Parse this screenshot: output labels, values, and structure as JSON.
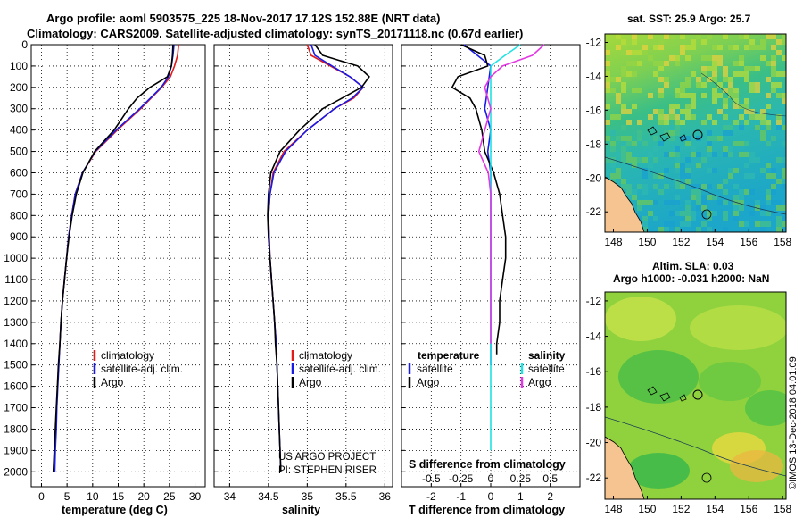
{
  "header": {
    "title_line1": "Argo profile: aoml 5903575_225 18-Nov-2017 17.12S 152.88E (NRT data)",
    "title_line2": "Climatology: CARS2009. Satellite-adjusted climatology: synTS_20171118.nc (0.67d earlier)"
  },
  "colors": {
    "climatology": "#e21a1a",
    "satellite": "#1a1ae6",
    "argo": "#000000",
    "sal_satellite": "#1fe3e3",
    "sal_argo": "#e23ae2",
    "land": "#f5c490"
  },
  "chart_data": [
    {
      "type": "line",
      "name": "temperature",
      "xlabel": "temperature (deg C)",
      "ylabel": "",
      "xlim": [
        -2,
        32
      ],
      "ylim": [
        2070,
        0
      ],
      "xticks": [
        0,
        5,
        10,
        15,
        20,
        25,
        30
      ],
      "yticks": [
        0,
        100,
        200,
        300,
        400,
        500,
        600,
        700,
        800,
        900,
        1000,
        1100,
        1200,
        1300,
        1400,
        1500,
        1600,
        1700,
        1800,
        1900,
        2000
      ],
      "legend": [
        "climatology",
        "satellite-adj. clim.",
        "Argo"
      ],
      "series": [
        {
          "name": "climatology",
          "color": "#e21a1a",
          "depth": [
            0,
            50,
            100,
            150,
            200,
            300,
            400,
            500,
            600,
            700,
            800,
            900,
            1000,
            1100,
            1200,
            1300,
            1400,
            1450
          ],
          "values": [
            26.8,
            26.6,
            26.0,
            25.2,
            23.5,
            19.4,
            14.8,
            10.6,
            8.0,
            6.6,
            5.9,
            5.3,
            4.9,
            4.5,
            4.1,
            3.8,
            3.6,
            3.5
          ]
        },
        {
          "name": "satellite-adj. clim.",
          "color": "#1a1ae6",
          "depth": [
            0,
            50,
            100,
            150,
            200,
            300,
            400,
            500,
            600,
            700,
            800,
            900,
            1000,
            1100,
            1200,
            1300,
            1400,
            1500,
            1600,
            1700,
            1800,
            1900,
            2000
          ],
          "values": [
            25.9,
            25.7,
            25.4,
            24.8,
            23.4,
            19.2,
            14.6,
            10.5,
            8.0,
            6.6,
            5.9,
            5.3,
            4.9,
            4.5,
            4.1,
            3.8,
            3.6,
            3.4,
            3.2,
            3.0,
            2.9,
            2.7,
            2.6
          ]
        },
        {
          "name": "Argo",
          "color": "#000000",
          "depth": [
            0,
            50,
            100,
            150,
            200,
            250,
            300,
            400,
            500,
            600,
            700,
            800,
            900,
            1000,
            1100,
            1200,
            1300,
            1400,
            1500,
            1600,
            1700,
            1800,
            1900,
            2000
          ],
          "values": [
            25.7,
            25.6,
            25.4,
            24.6,
            21.2,
            18.7,
            17.0,
            14.2,
            10.4,
            8.1,
            6.8,
            6.0,
            5.4,
            4.9,
            4.5,
            4.1,
            3.8,
            3.6,
            3.3,
            3.1,
            2.9,
            2.7,
            2.5,
            2.3
          ]
        }
      ]
    },
    {
      "type": "line",
      "name": "salinity",
      "xlabel": "salinity",
      "ylabel": "",
      "xlim": [
        33.8,
        36.1
      ],
      "ylim": [
        2070,
        0
      ],
      "xticks": [
        34,
        34.5,
        35,
        35.5,
        36
      ],
      "legend": [
        "climatology",
        "satellite-adj. clim.",
        "Argo"
      ],
      "annotations": [
        "US ARGO PROJECT",
        "PI: STEPHEN RISER"
      ],
      "series": [
        {
          "name": "climatology",
          "color": "#e21a1a",
          "depth": [
            0,
            50,
            100,
            150,
            200,
            250,
            300,
            400,
            500,
            600,
            700,
            800,
            900,
            1000,
            1100,
            1200,
            1300,
            1400,
            1450
          ],
          "values": [
            35.0,
            35.05,
            35.3,
            35.55,
            35.72,
            35.6,
            35.35,
            35.0,
            34.7,
            34.56,
            34.52,
            34.5,
            34.51,
            34.52,
            34.54,
            34.56,
            34.58,
            34.6,
            34.61
          ]
        },
        {
          "name": "satellite-adj. clim.",
          "color": "#1a1ae6",
          "depth": [
            0,
            50,
            100,
            150,
            200,
            250,
            300,
            400,
            500,
            600,
            700,
            800,
            900,
            1000,
            1100,
            1200,
            1300,
            1400,
            1500,
            1600,
            1700,
            1800,
            1900,
            2000
          ],
          "values": [
            35.05,
            35.1,
            35.32,
            35.55,
            35.72,
            35.58,
            35.35,
            35.0,
            34.72,
            34.57,
            34.52,
            34.5,
            34.51,
            34.52,
            34.54,
            34.56,
            34.58,
            34.6,
            34.61,
            34.62,
            34.63,
            34.64,
            34.65,
            34.66
          ]
        },
        {
          "name": "Argo",
          "color": "#000000",
          "depth": [
            0,
            50,
            100,
            150,
            200,
            250,
            300,
            400,
            500,
            600,
            700,
            800,
            900,
            1000,
            1100,
            1200,
            1300,
            1400,
            1500,
            1600,
            1700,
            1800,
            1900,
            2000
          ],
          "values": [
            35.1,
            35.2,
            35.65,
            35.8,
            35.7,
            35.45,
            35.2,
            34.9,
            34.65,
            34.53,
            34.5,
            34.49,
            34.5,
            34.52,
            34.54,
            34.56,
            34.58,
            34.59,
            34.61,
            34.62,
            34.63,
            34.64,
            34.65,
            34.66
          ]
        }
      ]
    },
    {
      "type": "line",
      "name": "differences",
      "xlabel": "T difference from climatology",
      "xlabel_top": "S difference from climatology",
      "xlim": [
        -3,
        3
      ],
      "xticks": [
        -2,
        -1,
        0,
        1,
        2
      ],
      "xlim_salinity": [
        -0.75,
        0.75
      ],
      "xticks_salinity": [
        "-0.5",
        "-0.25",
        "0",
        "0.25",
        "0.5"
      ],
      "ylim": [
        2070,
        0
      ],
      "legend_temperature_title": "temperature",
      "legend_salinity_title": "salinity",
      "legend_satellite": "satellite",
      "legend_argo": "Argo",
      "series": [
        {
          "name": "temperature satellite",
          "color": "#1a1ae6",
          "depth": [
            0,
            100,
            200,
            300,
            400,
            500,
            600,
            700,
            800,
            900,
            1000,
            1100,
            1200,
            1300,
            1400,
            1500
          ],
          "values": [
            -0.9,
            0,
            -0.1,
            -0.2,
            0.0,
            -0.1,
            0.0,
            0.0,
            0.0,
            0.0,
            0.0,
            0.0,
            0.0,
            0.0,
            0.0,
            0.0
          ]
        },
        {
          "name": "temperature Argo",
          "color": "#000000",
          "depth": [
            0,
            50,
            100,
            150,
            200,
            250,
            300,
            400,
            500,
            600,
            700,
            800,
            900,
            1000,
            1100,
            1200,
            1300,
            1400,
            1450
          ],
          "values": [
            -1.0,
            -0.2,
            -0.1,
            -1.1,
            -1.3,
            -0.7,
            -0.5,
            -0.3,
            -0.2,
            0.1,
            0.3,
            0.4,
            0.5,
            0.5,
            0.4,
            0.3,
            0.3,
            0.2,
            0.2
          ]
        },
        {
          "name": "salinity satellite",
          "color": "#1fe3e3",
          "depth": [
            0,
            50,
            100,
            200,
            300,
            500,
            700,
            900,
            1100,
            1300,
            1500,
            1700,
            1900
          ],
          "values": [
            0.25,
            0.12,
            0.0,
            0.0,
            0.0,
            0.0,
            0.0,
            0.0,
            0.0,
            0.0,
            0.0,
            0.0,
            0.0
          ]
        },
        {
          "name": "salinity Argo",
          "color": "#e23ae2",
          "depth": [
            0,
            50,
            100,
            150,
            200,
            300,
            400,
            500,
            600,
            700,
            800,
            900,
            1000,
            1200,
            1400
          ],
          "values": [
            0.45,
            0.35,
            0.1,
            0.0,
            -0.05,
            0.0,
            -0.05,
            -0.1,
            -0.02,
            0.0,
            0.0,
            0.0,
            0.0,
            0.0,
            0.0
          ]
        }
      ]
    },
    {
      "type": "heatmap",
      "name": "sst-map",
      "title": "sat. SST: 25.9 Argo: 25.7",
      "xticks": [
        148,
        150,
        152,
        154,
        156,
        158
      ],
      "yticks": [
        -12,
        -14,
        -16,
        -18,
        -20,
        -22
      ],
      "xlim": [
        147.5,
        158.2
      ],
      "ylim": [
        -23.2,
        -11.5
      ],
      "argo_position": [
        152.88,
        -17.12
      ]
    },
    {
      "type": "heatmap",
      "name": "sla-map",
      "title_line1": "Altim. SLA: 0.03",
      "title_line2": "Argo h1000: -0.031 h2000: NaN",
      "xticks": [
        148,
        150,
        152,
        154,
        156,
        158
      ],
      "yticks": [
        -12,
        -14,
        -16,
        -18,
        -20,
        -22
      ],
      "xlim": [
        147.5,
        158.2
      ],
      "ylim": [
        -23.2,
        -11.5
      ],
      "argo_position": [
        152.88,
        -17.12
      ]
    }
  ],
  "footer": {
    "watermark": "©IMOS 13-Dec-2018 04:01:09"
  }
}
